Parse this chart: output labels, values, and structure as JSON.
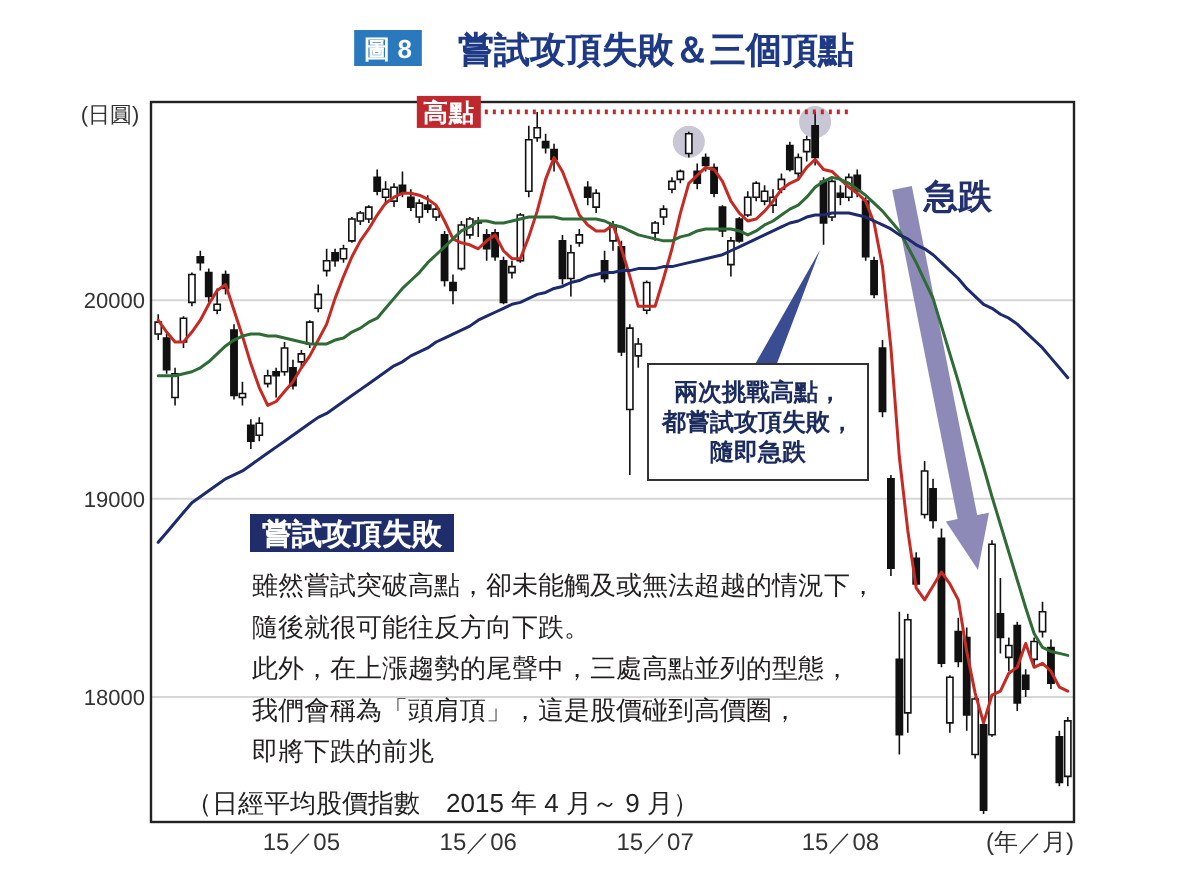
{
  "chart_data": {
    "type": "candlestick",
    "title": "嘗試攻頂失敗＆三個頂點",
    "ylabel": "(日圓)",
    "xlabel": "(年／月)",
    "categories": [
      null,
      null,
      null,
      null,
      null,
      null,
      null,
      null,
      null,
      null,
      null,
      null,
      null,
      null,
      null,
      null,
      null,
      "15／05",
      null,
      null,
      null,
      null,
      null,
      null,
      null,
      null,
      null,
      null,
      null,
      null,
      null,
      null,
      null,
      null,
      null,
      null,
      null,
      null,
      "15／06",
      null,
      null,
      null,
      null,
      null,
      null,
      null,
      null,
      null,
      null,
      null,
      null,
      null,
      null,
      null,
      null,
      null,
      null,
      null,
      null,
      "15／07",
      null,
      null,
      null,
      null,
      null,
      null,
      null,
      null,
      null,
      null,
      null,
      null,
      null,
      null,
      null,
      null,
      null,
      null,
      null,
      null,
      null,
      "15／08",
      null,
      null,
      null,
      null,
      null,
      null,
      null,
      null,
      null,
      null,
      null,
      null,
      null,
      null,
      null,
      null,
      null,
      null,
      null,
      null,
      null,
      null,
      null,
      null,
      null,
      null,
      null
    ],
    "ohlc": [
      [
        19830,
        19930,
        19800,
        19890
      ],
      [
        19810,
        19830,
        19630,
        19650
      ],
      [
        19510,
        19660,
        19470,
        19630
      ],
      [
        19790,
        19920,
        19760,
        19910
      ],
      [
        19990,
        20140,
        19970,
        20130
      ],
      [
        20220,
        20250,
        20150,
        20190
      ],
      [
        20140,
        20160,
        19990,
        20020
      ],
      [
        19950,
        20060,
        19930,
        19980
      ],
      [
        20130,
        20150,
        20030,
        20060
      ],
      [
        19850,
        19880,
        19500,
        19520
      ],
      [
        19510,
        19590,
        19470,
        19530
      ],
      [
        19370,
        19400,
        19250,
        19290
      ],
      [
        19320,
        19410,
        19290,
        19380
      ],
      [
        19580,
        19650,
        19560,
        19620
      ],
      [
        19640,
        19660,
        19510,
        19620
      ],
      [
        19640,
        19790,
        19620,
        19760
      ],
      [
        19660,
        19700,
        19550,
        19570
      ],
      [
        19690,
        19750,
        19660,
        19730
      ],
      [
        19780,
        19900,
        19760,
        19890
      ],
      [
        19960,
        20080,
        19940,
        20030
      ],
      [
        20150,
        20260,
        20120,
        20200
      ],
      [
        20240,
        20260,
        20170,
        20200
      ],
      [
        20210,
        20280,
        20190,
        20260
      ],
      [
        20300,
        20420,
        20290,
        20410
      ],
      [
        20400,
        20450,
        20380,
        20440
      ],
      [
        20410,
        20480,
        20390,
        20470
      ],
      [
        20620,
        20660,
        20530,
        20550
      ],
      [
        20520,
        20600,
        20480,
        20560
      ],
      [
        20500,
        20590,
        20470,
        20570
      ],
      [
        20580,
        20650,
        20520,
        20540
      ],
      [
        20520,
        20560,
        20450,
        20470
      ],
      [
        20420,
        20510,
        20390,
        20490
      ],
      [
        20480,
        20530,
        20440,
        20460
      ],
      [
        20420,
        20480,
        20400,
        20460
      ],
      [
        20330,
        20350,
        20070,
        20100
      ],
      [
        20090,
        20130,
        19980,
        20050
      ],
      [
        20160,
        20400,
        20150,
        20380
      ],
      [
        20330,
        20420,
        20310,
        20410
      ],
      [
        20400,
        20420,
        20320,
        20390
      ],
      [
        20330,
        20360,
        20200,
        20260
      ],
      [
        20340,
        20360,
        20200,
        20220
      ],
      [
        20200,
        20220,
        19980,
        19990
      ],
      [
        20140,
        20200,
        20110,
        20170
      ],
      [
        20200,
        20440,
        20190,
        20430
      ],
      [
        20550,
        20880,
        20520,
        20810
      ],
      [
        20820,
        20950,
        20800,
        20870
      ],
      [
        20800,
        20840,
        20740,
        20770
      ],
      [
        20760,
        20790,
        20650,
        20710
      ],
      [
        20300,
        20330,
        20080,
        20110
      ],
      [
        20110,
        20280,
        20020,
        20240
      ],
      [
        20290,
        20360,
        20270,
        20330
      ],
      [
        20570,
        20600,
        20480,
        20520
      ],
      [
        20470,
        20560,
        20440,
        20540
      ],
      [
        20200,
        20250,
        20090,
        20110
      ],
      [
        20300,
        20400,
        20250,
        20380
      ],
      [
        20270,
        20300,
        19720,
        19740
      ],
      [
        19450,
        19880,
        19120,
        19860
      ],
      [
        19720,
        19810,
        19660,
        19780
      ],
      [
        19950,
        20100,
        19930,
        20090
      ],
      [
        20340,
        20400,
        20300,
        20390
      ],
      [
        20420,
        20480,
        20380,
        20460
      ],
      [
        20560,
        20620,
        20540,
        20600
      ],
      [
        20610,
        20660,
        20590,
        20650
      ],
      [
        20740,
        20850,
        20720,
        20840
      ],
      [
        20650,
        20690,
        20560,
        20590
      ],
      [
        20720,
        20740,
        20650,
        20680
      ],
      [
        20670,
        20690,
        20520,
        20540
      ],
      [
        20470,
        20480,
        20320,
        20350
      ],
      [
        20180,
        20320,
        20120,
        20300
      ],
      [
        20410,
        20420,
        20290,
        20300
      ],
      [
        20430,
        20550,
        20420,
        20520
      ],
      [
        20520,
        20600,
        20500,
        20590
      ],
      [
        20500,
        20580,
        20480,
        20550
      ],
      [
        20480,
        20560,
        20440,
        20520
      ],
      [
        20560,
        20640,
        20540,
        20610
      ],
      [
        20780,
        20800,
        20650,
        20660
      ],
      [
        20640,
        20740,
        20610,
        20720
      ],
      [
        20750,
        20830,
        20700,
        20810
      ],
      [
        20880,
        20950,
        20680,
        20720
      ],
      [
        20600,
        20620,
        20280,
        20390
      ],
      [
        20420,
        20610,
        20400,
        20600
      ],
      [
        20540,
        20580,
        20480,
        20520
      ],
      [
        20520,
        20640,
        20500,
        20620
      ],
      [
        20630,
        20660,
        20520,
        20550
      ],
      [
        20500,
        20520,
        20200,
        20220
      ],
      [
        20200,
        20220,
        20010,
        20030
      ],
      [
        19760,
        19800,
        19410,
        19440
      ],
      [
        19100,
        19120,
        18610,
        18650
      ],
      [
        18190,
        18430,
        17710,
        17810
      ],
      [
        17920,
        18420,
        17820,
        18390
      ],
      [
        18700,
        18730,
        18560,
        18570
      ],
      [
        18920,
        19190,
        18900,
        19140
      ],
      [
        19050,
        19100,
        18850,
        18890
      ],
      [
        18800,
        18850,
        18150,
        18170
      ],
      [
        17870,
        18110,
        17820,
        18100
      ],
      [
        18330,
        18400,
        18150,
        18180
      ],
      [
        18300,
        18350,
        17830,
        17910
      ],
      [
        17710,
        18000,
        17690,
        17990
      ],
      [
        17860,
        17880,
        17410,
        17430
      ],
      [
        17810,
        18790,
        17800,
        18770
      ],
      [
        18420,
        18600,
        18220,
        18300
      ],
      [
        18200,
        18300,
        18130,
        18260
      ],
      [
        18360,
        18380,
        17930,
        17970
      ],
      [
        18110,
        18140,
        18000,
        18040
      ],
      [
        18190,
        18300,
        18150,
        18280
      ],
      [
        18330,
        18480,
        18300,
        18430
      ],
      [
        18250,
        18290,
        18040,
        18070
      ],
      [
        17800,
        17830,
        17550,
        17570
      ],
      [
        17600,
        17900,
        17550,
        17880
      ]
    ],
    "series": [
      {
        "type": "line",
        "color": "#c62a22",
        "values": [
          19900,
          19840,
          19790,
          19790,
          19840,
          19900,
          19980,
          20050,
          20080,
          19950,
          19820,
          19680,
          19560,
          19470,
          19490,
          19540,
          19590,
          19660,
          19720,
          19800,
          19880,
          20010,
          20120,
          20220,
          20300,
          20360,
          20430,
          20490,
          20520,
          20540,
          20540,
          20530,
          20510,
          20480,
          20400,
          20310,
          20290,
          20280,
          20260,
          20300,
          20330,
          20250,
          20210,
          20210,
          20320,
          20450,
          20610,
          20720,
          20650,
          20540,
          20430,
          20380,
          20350,
          20350,
          20380,
          20260,
          20120,
          19970,
          19970,
          19970,
          20110,
          20260,
          20440,
          20590,
          20630,
          20670,
          20660,
          20600,
          20500,
          20440,
          20400,
          20410,
          20450,
          20500,
          20560,
          20590,
          20610,
          20670,
          20710,
          20660,
          20650,
          20610,
          20570,
          20540,
          20500,
          20390,
          20170,
          19760,
          19210,
          18840,
          18550,
          18490,
          18560,
          18630,
          18570,
          18490,
          18230,
          18020,
          17870,
          18010,
          18030,
          18120,
          18150,
          18270,
          18150,
          18170,
          18130,
          18050,
          18030
        ]
      },
      {
        "type": "line",
        "color": "#2e6b35",
        "values": [
          19620,
          19620,
          19620,
          19630,
          19640,
          19660,
          19690,
          19730,
          19770,
          19800,
          19820,
          19830,
          19830,
          19820,
          19820,
          19810,
          19800,
          19790,
          19780,
          19780,
          19780,
          19800,
          19810,
          19840,
          19860,
          19890,
          19910,
          19960,
          20010,
          20060,
          20100,
          20140,
          20190,
          20230,
          20270,
          20310,
          20350,
          20370,
          20400,
          20400,
          20390,
          20390,
          20400,
          20410,
          20420,
          20420,
          20420,
          20420,
          20410,
          20410,
          20410,
          20410,
          20410,
          20400,
          20380,
          20370,
          20350,
          20330,
          20320,
          20310,
          20300,
          20300,
          20320,
          20330,
          20350,
          20360,
          20360,
          20360,
          20360,
          20350,
          20330,
          20350,
          20380,
          20400,
          20430,
          20460,
          20480,
          20520,
          20570,
          20600,
          20620,
          20610,
          20590,
          20560,
          20530,
          20490,
          20450,
          20400,
          20350,
          20270,
          20190,
          20100,
          20010,
          19870,
          19730,
          19590,
          19440,
          19300,
          19160,
          19010,
          18870,
          18730,
          18590,
          18450,
          18320,
          18250,
          18230,
          18220,
          18210
        ]
      },
      {
        "type": "line",
        "color": "#1d2a6e",
        "values": [
          18780,
          18830,
          18880,
          18930,
          18980,
          19010,
          19040,
          19070,
          19100,
          19120,
          19140,
          19170,
          19200,
          19230,
          19260,
          19290,
          19320,
          19350,
          19380,
          19410,
          19430,
          19460,
          19490,
          19520,
          19550,
          19580,
          19610,
          19640,
          19670,
          19690,
          19720,
          19740,
          19760,
          19790,
          19810,
          19830,
          19850,
          19870,
          19900,
          19920,
          19940,
          19960,
          19980,
          19990,
          20010,
          20030,
          20040,
          20060,
          20070,
          20090,
          20100,
          20120,
          20130,
          20140,
          20140,
          20150,
          20150,
          20160,
          20160,
          20160,
          20170,
          20170,
          20180,
          20190,
          20200,
          20210,
          20220,
          20230,
          20250,
          20270,
          20290,
          20310,
          20330,
          20350,
          20370,
          20390,
          20400,
          20420,
          20430,
          20430,
          20440,
          20440,
          20440,
          20430,
          20420,
          20400,
          20380,
          20360,
          20330,
          20310,
          20280,
          20260,
          20230,
          20190,
          20150,
          20110,
          20060,
          20020,
          19980,
          19960,
          19930,
          19910,
          19880,
          19840,
          19800,
          19760,
          19710,
          19660,
          19610
        ]
      }
    ],
    "ylim": [
      17370,
      21000
    ],
    "yticks": [
      18000,
      19000,
      20000
    ],
    "grid": "y",
    "ref_lines": [
      {
        "axis": "y",
        "value": 20950,
        "label": "高點",
        "color": "#c0282d",
        "line_style": "dotted"
      }
    ],
    "annotations": [
      "圖 8",
      "嘗試攻頂失敗",
      "雖然嘗試突破高點，卻未能觸及或無法超越的情況下，",
      "隨後就很可能往反方向下跌。",
      "此外，在上漲趨勢的尾聲中，三處高點並列的型態，",
      "我們會稱為「頭肩頂」，這是股價碰到高價圈，",
      "即將下跌的前兆",
      "兩次挑戰高點，",
      "都嘗試攻頂失敗，",
      "隨即急跌",
      "急跌",
      "（日經平均股價指數　2015 年 4 月～ 9 月）"
    ]
  }
}
